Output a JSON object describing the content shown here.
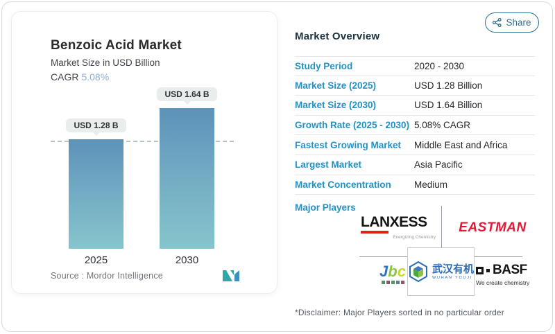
{
  "share": {
    "label": "Share"
  },
  "chart_card": {
    "title": "Benzoic Acid Market",
    "subtitle": "Market Size in USD Billion",
    "cagr_label": "CAGR",
    "cagr_value": "5.08%",
    "source_text": "Source :  Mordor Intelligence"
  },
  "chart_data": {
    "type": "bar",
    "categories": [
      "2025",
      "2030"
    ],
    "values": [
      1.28,
      1.64
    ],
    "bar_labels": [
      "USD 1.28 B",
      "USD 1.64 B"
    ],
    "title": "Benzoic Acid Market",
    "ylabel": "Market Size in USD Billion",
    "ylim": [
      0,
      1.64
    ],
    "grid": "single dashed reference line at 1.28",
    "bar_gradient_top": "#5d92b9",
    "bar_gradient_bottom": "#86c5cc"
  },
  "overview": {
    "title": "Market Overview",
    "rows": [
      {
        "label": "Study Period",
        "value": "2020 - 2030"
      },
      {
        "label": "Market Size (2025)",
        "value": "USD 1.28 Billion"
      },
      {
        "label": "Market Size (2030)",
        "value": "USD 1.64 Billion"
      },
      {
        "label": "Growth Rate (2025 - 2030)",
        "value": "5.08% CAGR"
      },
      {
        "label": "Fastest Growing Market",
        "value": "Middle East and Africa"
      },
      {
        "label": "Largest Market",
        "value": "Asia Pacific"
      },
      {
        "label": "Market Concentration",
        "value": "Medium"
      }
    ],
    "major_players_label": "Major Players",
    "disclaimer": "*Disclaimer: Major Players sorted in no particular order"
  },
  "logos": {
    "lanxess": {
      "name": "LANXESS",
      "tagline": "Energizing Chemistry"
    },
    "eastman": {
      "name": "EASTMAN"
    },
    "jbc": {
      "name_j": "J",
      "name_b": "b",
      "name_c": "c"
    },
    "wuhan": {
      "name": "武汉有机",
      "sub": "WUHAN  YOUJI"
    },
    "basf": {
      "name": "BASF",
      "tagline": "We create chemistry"
    }
  },
  "colors": {
    "accent_blue_label": "#2391c5",
    "title_navy": "#1c3140",
    "cagr_light_blue": "#8aaed2",
    "share_teal": "#2f6e8e",
    "eastman_red": "#e31837",
    "lanxess_red": "#d62420",
    "wuhan_blue": "#2b6bb5",
    "wuhan_green": "#4ca83c",
    "pill_bg": "#e9eeed"
  }
}
